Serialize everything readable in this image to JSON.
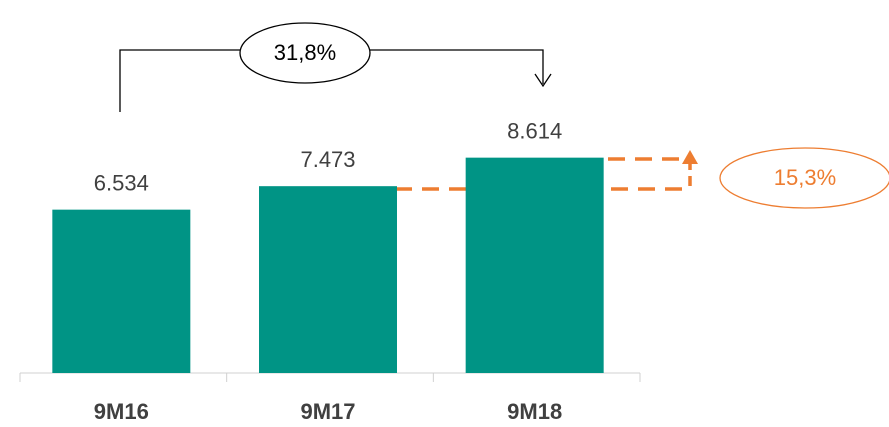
{
  "chart_data": {
    "type": "bar",
    "categories": [
      "9M16",
      "9M17",
      "9M18"
    ],
    "values": [
      6534,
      7473,
      8614
    ],
    "value_labels": [
      "6.534",
      "7.473",
      "8.614"
    ],
    "color": "#009485",
    "ylim": [
      0,
      10000
    ],
    "annotations": [
      "31,8%",
      "15,3%"
    ]
  }
}
